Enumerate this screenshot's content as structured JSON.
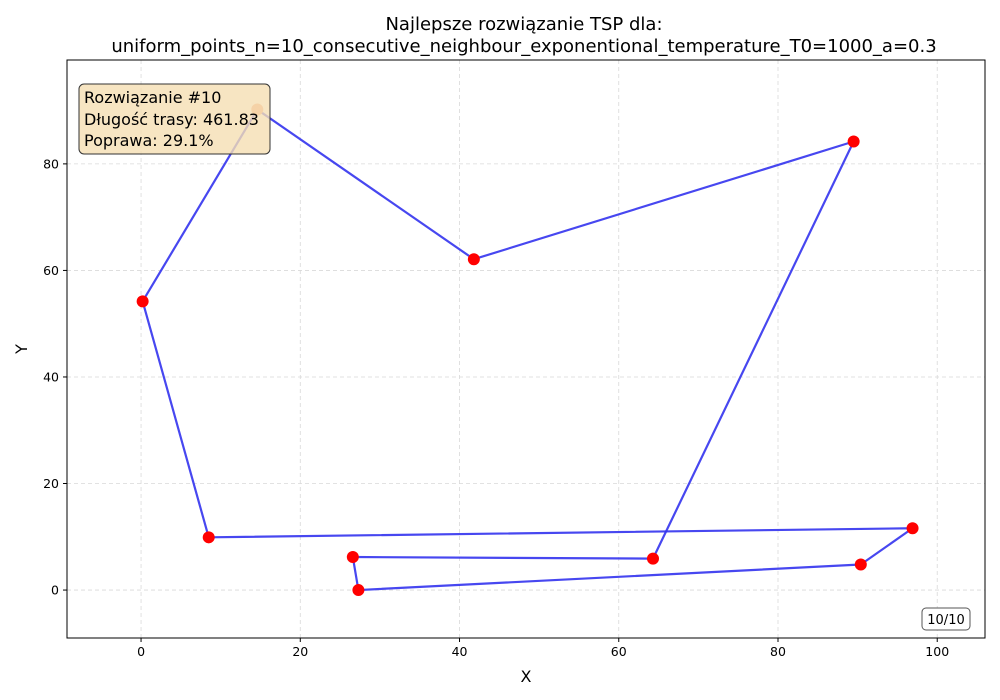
{
  "chart_data": {
    "type": "line",
    "title_line1": "Najlepsze rozwiązanie TSP dla:",
    "title_line2": "uniform_points_n=10_consecutive_neighbour_exponentional_temperature_T0=1000_a=0.3",
    "xlabel": "X",
    "ylabel": "Y",
    "xlim": [
      -9.3,
      106.0
    ],
    "ylim": [
      -9.0,
      99.5
    ],
    "xticks": [
      0,
      20,
      40,
      60,
      80,
      100
    ],
    "yticks": [
      0,
      20,
      40,
      60,
      80
    ],
    "grid": true,
    "route_color": "#3333ee",
    "point_color": "#ff0000",
    "highlight_color": "#f4a27a",
    "route": [
      {
        "x": 14.6,
        "y": 90.2
      },
      {
        "x": 41.8,
        "y": 62.1
      },
      {
        "x": 89.5,
        "y": 84.2
      },
      {
        "x": 64.3,
        "y": 5.9
      },
      {
        "x": 26.6,
        "y": 6.2
      },
      {
        "x": 27.3,
        "y": 0.0
      },
      {
        "x": 90.4,
        "y": 4.8
      },
      {
        "x": 96.9,
        "y": 11.6
      },
      {
        "x": 8.5,
        "y": 9.9
      },
      {
        "x": 0.2,
        "y": 54.2
      }
    ],
    "highlight_index": 0
  },
  "info_box": {
    "line1": "Rozwiązanie #10",
    "line2": "Długość trasy: 461.83",
    "line3": "Poprawa: 29.1%"
  },
  "counter": "10/10"
}
